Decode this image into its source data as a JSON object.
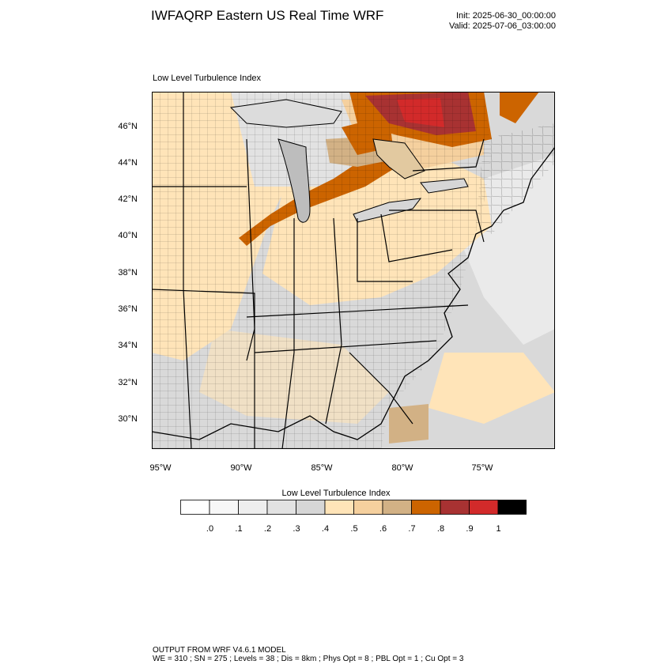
{
  "header": {
    "title": "IWFAQRP Eastern US Real Time WRF",
    "init": "Init: 2025-06-30_00:00:00",
    "valid": "Valid: 2025-07-06_03:00:00"
  },
  "field_title": "Low Level Turbulence Index",
  "map": {
    "lat_ticks": [
      "46°N",
      "44°N",
      "42°N",
      "40°N",
      "38°N",
      "36°N",
      "34°N",
      "32°N",
      "30°N"
    ],
    "lon_ticks": [
      "95°W",
      "90°W",
      "85°W",
      "80°W",
      "75°W"
    ],
    "field": "Low Level Turbulence Index",
    "extent": {
      "lon_min": -95.5,
      "lon_max": -70.5,
      "lat_min": 28.5,
      "lat_max": 47.8
    },
    "max_region": "Northern Lake Huron / Ontario (~0.8–0.9)",
    "high_band": "Northern Illinois to Michigan (~0.7–0.8)"
  },
  "colorbar": {
    "title": "Low Level Turbulence Index",
    "colors": [
      "#ffffff",
      "#f7f7f7",
      "#eeeeee",
      "#e2e2e2",
      "#d6d6d6",
      "#ffe4b8",
      "#f5d09e",
      "#d2b185",
      "#cc6400",
      "#a83232",
      "#d22a2a",
      "#000000"
    ],
    "labels": [
      ".0",
      ".1",
      ".2",
      ".3",
      ".4",
      ".5",
      ".6",
      ".7",
      ".8",
      ".9",
      "1"
    ]
  },
  "footer": {
    "line1": "OUTPUT FROM WRF V4.6.1 MODEL",
    "line2": "WE = 310 ; SN = 275 ; Levels = 38 ; Dis = 8km ; Phys Opt = 8 ; PBL Opt = 1 ; Cu Opt = 3"
  }
}
